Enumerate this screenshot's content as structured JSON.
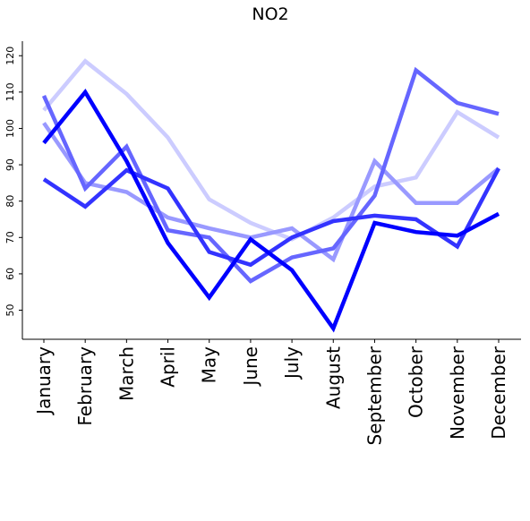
{
  "chart_data": {
    "type": "line",
    "title": "NO2",
    "xlabel": "",
    "ylabel": "",
    "categories": [
      "January",
      "February",
      "March",
      "April",
      "May",
      "June",
      "July",
      "August",
      "September",
      "October",
      "November",
      "December"
    ],
    "yticks": [
      50,
      60,
      70,
      80,
      90,
      100,
      110,
      120
    ],
    "ylim": [
      42,
      124
    ],
    "grid": false,
    "series": [
      {
        "color": "#ccccff",
        "values": [
          105,
          118.5,
          109.5,
          97.5,
          80.5,
          74,
          69.5,
          75.5,
          84,
          86.5,
          104.5,
          97.5
        ]
      },
      {
        "color": "#9999ff",
        "values": [
          101.5,
          85,
          82.5,
          75.5,
          72.5,
          70,
          72.5,
          64,
          91,
          79.5,
          79.5,
          89
        ]
      },
      {
        "color": "#6666ff",
        "values": [
          109,
          83.5,
          95,
          72,
          70,
          58,
          64.5,
          67,
          81.5,
          116,
          107,
          104
        ]
      },
      {
        "color": "#3333ff",
        "values": [
          86,
          78.5,
          88.5,
          83.5,
          66,
          62.5,
          70,
          74.5,
          76,
          75,
          67.5,
          89
        ]
      },
      {
        "color": "#0000ff",
        "values": [
          96,
          110,
          91,
          68.5,
          53.5,
          69.5,
          61,
          45,
          74,
          71.5,
          70.5,
          76.5
        ]
      }
    ]
  }
}
